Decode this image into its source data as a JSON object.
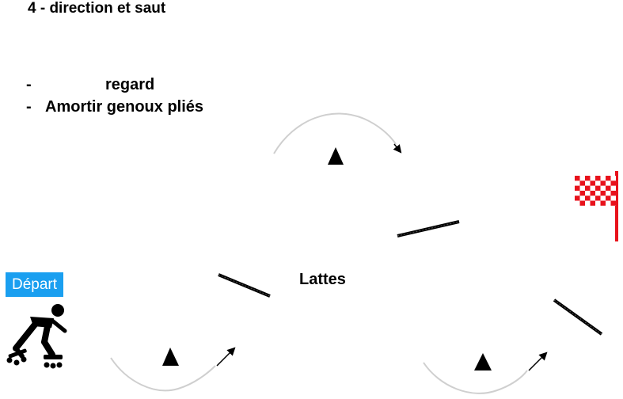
{
  "title": "4 -  direction et saut",
  "bullets": [
    {
      "dash": "-",
      "text": "regard"
    },
    {
      "dash": "-",
      "text": "Amortir genoux pliés"
    }
  ],
  "obstacle_label": "Lattes",
  "start_label": "Départ",
  "icons": [
    "skater-icon",
    "checkered-flag-icon",
    "cone-icon",
    "curved-arrow-icon"
  ],
  "colors": {
    "start_badge": "#1a9ff0",
    "flag": "#e8121c",
    "arc": "#cfcfcf",
    "ink": "#000000"
  }
}
